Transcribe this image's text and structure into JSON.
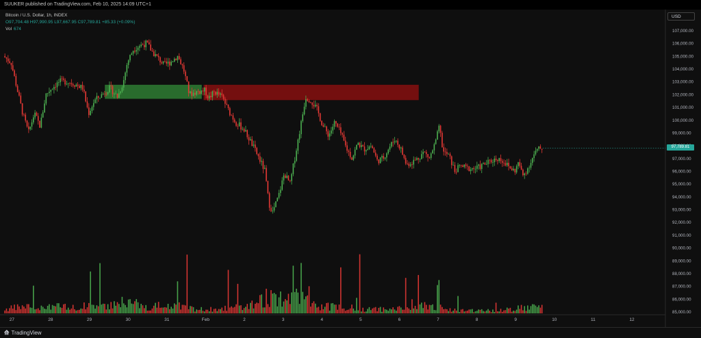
{
  "header": {
    "published": "SUUKER published on TradingView.com, Feb 10, 2025 14:09 UTC+1"
  },
  "legend": {
    "symbol": "Bitcoin / U.S. Dollar, 1h, INDEX",
    "ohlc": "O97,704.48  H97,990.95  L97,667.95  C97,789.81  +85.33 (+0.09%)",
    "vol_label": "Vol",
    "vol_value": "674"
  },
  "currency_button": "USD",
  "footer": {
    "brand": "TradingView"
  },
  "colors": {
    "up": "#26a69a",
    "down": "#ef5350",
    "candle_up": "#4caf50",
    "candle_down": "#e53935",
    "zone_green": "#2e7d32",
    "zone_red": "#7f0f0f",
    "background": "#0f0f0f"
  },
  "chart_data": {
    "type": "candlestick",
    "title": "Bitcoin / U.S. Dollar, 1h, INDEX",
    "last_price": "97,789.81",
    "ylim": [
      84500,
      108000
    ],
    "y_ticks": [
      "107,000.00",
      "106,000.00",
      "105,000.00",
      "104,000.00",
      "103,000.00",
      "102,000.00",
      "101,000.00",
      "100,000.00",
      "99,000.00",
      "98,000.00",
      "97,000.00",
      "96,000.00",
      "95,000.00",
      "94,000.00",
      "93,000.00",
      "92,000.00",
      "91,000.00",
      "90,000.00",
      "89,000.00",
      "88,000.00",
      "87,000.00",
      "86,000.00",
      "85,000.00"
    ],
    "x_ticks": [
      "27",
      "28",
      "29",
      "30",
      "31",
      "Feb",
      "2",
      "3",
      "4",
      "5",
      "6",
      "7",
      "8",
      "9",
      "10",
      "11",
      "12"
    ],
    "x_range": [
      26.8,
      43.3
    ],
    "zones": [
      {
        "color": "green",
        "x_start": 29.4,
        "x_end": 31.9,
        "y_low": 101650,
        "y_high": 102750
      },
      {
        "color": "red",
        "x_start": 31.95,
        "x_end": 37.5,
        "y_low": 101550,
        "y_high": 102750
      }
    ],
    "price_path": [
      [
        26.8,
        105000
      ],
      [
        27.0,
        104500
      ],
      [
        27.15,
        102500
      ],
      [
        27.3,
        100500
      ],
      [
        27.45,
        99000
      ],
      [
        27.6,
        100500
      ],
      [
        27.75,
        99500
      ],
      [
        27.9,
        102000
      ],
      [
        28.05,
        102500
      ],
      [
        28.25,
        103000
      ],
      [
        28.45,
        103000
      ],
      [
        28.65,
        102800
      ],
      [
        28.85,
        102500
      ],
      [
        29.0,
        100500
      ],
      [
        29.15,
        101500
      ],
      [
        29.35,
        102000
      ],
      [
        29.55,
        102500
      ],
      [
        29.75,
        101800
      ],
      [
        29.9,
        103000
      ],
      [
        30.0,
        104500
      ],
      [
        30.15,
        105500
      ],
      [
        30.3,
        105800
      ],
      [
        30.5,
        106000
      ],
      [
        30.65,
        105300
      ],
      [
        30.8,
        104800
      ],
      [
        30.95,
        104300
      ],
      [
        31.1,
        104500
      ],
      [
        31.3,
        105000
      ],
      [
        31.45,
        104000
      ],
      [
        31.6,
        102000
      ],
      [
        31.8,
        102200
      ],
      [
        32.0,
        102300
      ],
      [
        32.1,
        101700
      ],
      [
        32.25,
        102200
      ],
      [
        32.45,
        101800
      ],
      [
        32.6,
        100800
      ],
      [
        32.8,
        99800
      ],
      [
        33.0,
        99300
      ],
      [
        33.2,
        98200
      ],
      [
        33.4,
        97000
      ],
      [
        33.55,
        96000
      ],
      [
        33.65,
        93500
      ],
      [
        33.75,
        92800
      ],
      [
        33.9,
        94000
      ],
      [
        34.05,
        95800
      ],
      [
        34.2,
        95000
      ],
      [
        34.35,
        97500
      ],
      [
        34.5,
        100000
      ],
      [
        34.6,
        101800
      ],
      [
        34.75,
        101500
      ],
      [
        34.9,
        100800
      ],
      [
        35.05,
        99500
      ],
      [
        35.2,
        98800
      ],
      [
        35.35,
        99800
      ],
      [
        35.5,
        99000
      ],
      [
        35.65,
        97800
      ],
      [
        35.8,
        97000
      ],
      [
        35.95,
        98200
      ],
      [
        36.1,
        97700
      ],
      [
        36.3,
        98000
      ],
      [
        36.45,
        96800
      ],
      [
        36.6,
        97000
      ],
      [
        36.75,
        97800
      ],
      [
        36.9,
        98500
      ],
      [
        37.05,
        97800
      ],
      [
        37.2,
        96500
      ],
      [
        37.35,
        96700
      ],
      [
        37.5,
        97000
      ],
      [
        37.65,
        97500
      ],
      [
        37.8,
        97000
      ],
      [
        37.95,
        98200
      ],
      [
        38.05,
        99500
      ],
      [
        38.15,
        97500
      ],
      [
        38.3,
        97200
      ],
      [
        38.45,
        96000
      ],
      [
        38.6,
        96400
      ],
      [
        38.8,
        96200
      ],
      [
        39.0,
        96200
      ],
      [
        39.2,
        96500
      ],
      [
        39.4,
        96800
      ],
      [
        39.55,
        97000
      ],
      [
        39.7,
        96800
      ],
      [
        39.85,
        96300
      ],
      [
        40.0,
        96000
      ],
      [
        40.1,
        96700
      ],
      [
        40.2,
        95600
      ],
      [
        40.35,
        96300
      ],
      [
        40.5,
        97300
      ],
      [
        40.6,
        97700
      ],
      [
        40.7,
        97790
      ]
    ],
    "volume_profile": [
      [
        26.8,
        3
      ],
      [
        27.3,
        5
      ],
      [
        27.9,
        6
      ],
      [
        28.5,
        4
      ],
      [
        29.1,
        6
      ],
      [
        29.9,
        9
      ],
      [
        30.5,
        5
      ],
      [
        31.2,
        6
      ],
      [
        31.8,
        3
      ],
      [
        32.4,
        3
      ],
      [
        33.0,
        5
      ],
      [
        33.6,
        12
      ],
      [
        33.9,
        8
      ],
      [
        34.4,
        13
      ],
      [
        34.9,
        5
      ],
      [
        35.5,
        5
      ],
      [
        36.1,
        3
      ],
      [
        36.7,
        3
      ],
      [
        37.2,
        4
      ],
      [
        37.7,
        7
      ],
      [
        38.2,
        3
      ],
      [
        38.8,
        2
      ],
      [
        39.4,
        2
      ],
      [
        39.9,
        3
      ],
      [
        40.4,
        5
      ],
      [
        40.7,
        4
      ]
    ]
  }
}
